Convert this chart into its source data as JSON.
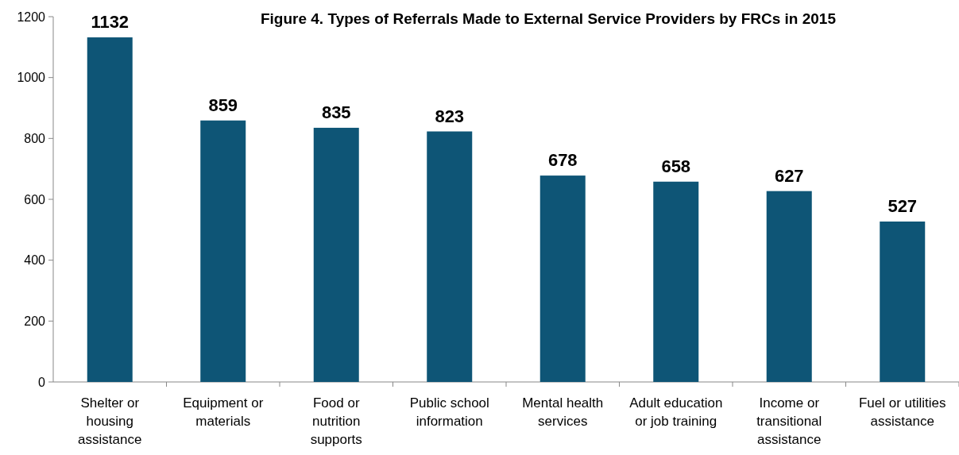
{
  "chart_data": {
    "type": "bar",
    "title": "Figure 4. Types of Referrals Made to External Service Providers by FRCs in 2015",
    "categories": [
      "Shelter or\nhousing\nassistance",
      "Equipment or\nmaterials",
      "Food or\nnutrition\nsupports",
      "Public school\ninformation",
      "Mental health\nservices",
      "Adult education\nor job training",
      "Income or\ntransitional\nassistance",
      "Fuel or utilities\nassistance"
    ],
    "values": [
      1132,
      859,
      835,
      823,
      678,
      658,
      627,
      527
    ],
    "color": "#0e5576",
    "ylim": [
      0,
      1200
    ],
    "yticks": [
      0,
      200,
      400,
      600,
      800,
      1000,
      1200
    ],
    "data_labels": true
  }
}
